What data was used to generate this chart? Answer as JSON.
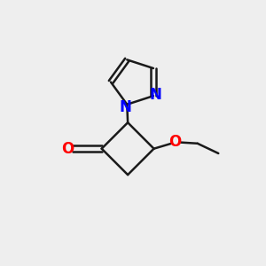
{
  "background_color": "#eeeeee",
  "bond_color": "#1a1a1a",
  "nitrogen_color": "#0000ff",
  "oxygen_color": "#ff0000",
  "bond_width": 1.8,
  "figsize": [
    3.0,
    3.0
  ],
  "dpi": 100,
  "xlim": [
    0,
    10
  ],
  "ylim": [
    0,
    10
  ]
}
